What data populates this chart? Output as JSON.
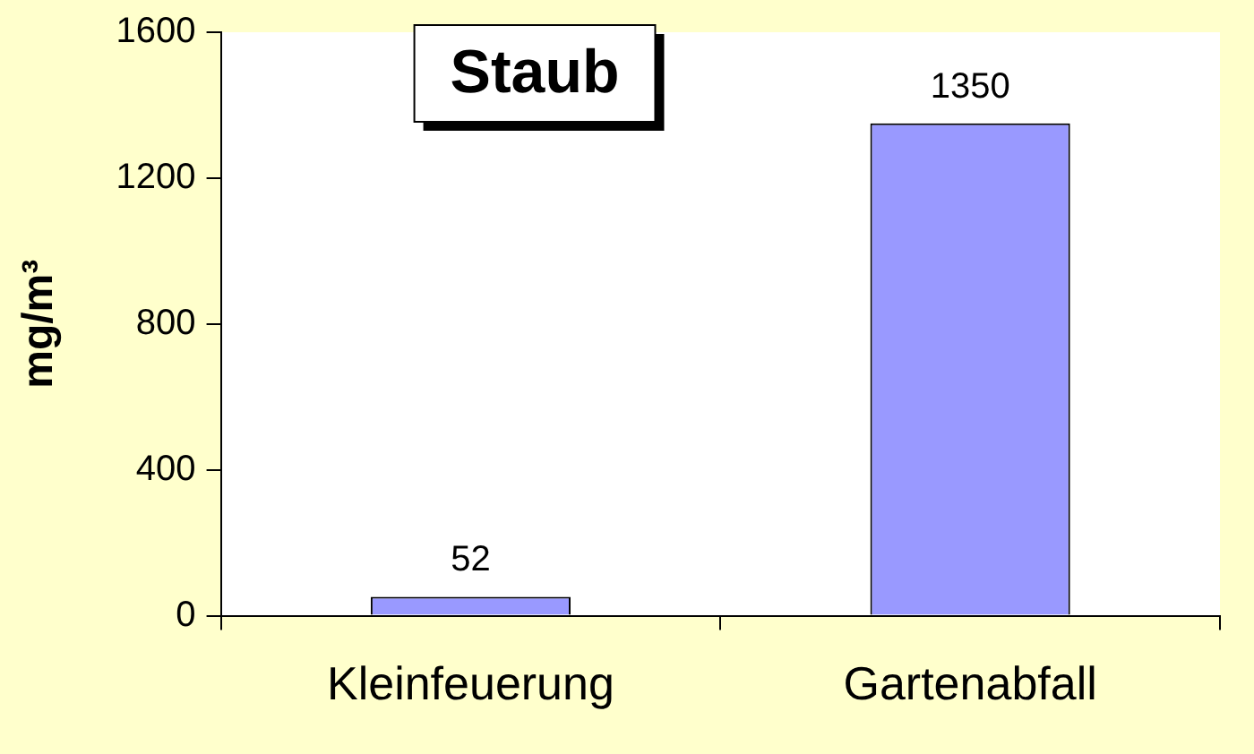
{
  "chart_data": {
    "type": "bar",
    "title": "Staub",
    "ylabel": "mg/m³",
    "categories": [
      "Kleinfeuerung",
      "Gartenabfall"
    ],
    "values": [
      52,
      1350
    ],
    "color": "#9999ff",
    "ylim": [
      0,
      1600
    ],
    "yticks": [
      0,
      400,
      800,
      1200,
      1600
    ],
    "grid": false,
    "legend": false,
    "data_labels": true
  }
}
